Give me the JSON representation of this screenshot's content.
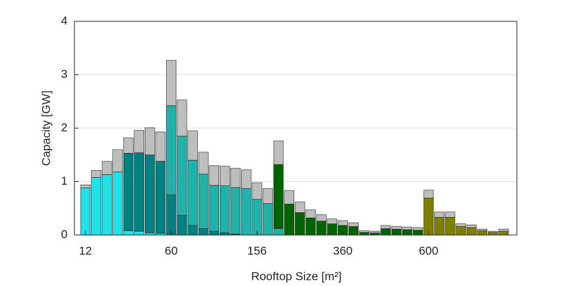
{
  "chart_data": {
    "type": "stacked_bar",
    "xlabel": "Rooftop Size [m²]",
    "ylabel": "Capacity [GW]",
    "categories": [
      "12",
      null,
      null,
      null,
      null,
      null,
      null,
      null,
      "60",
      null,
      null,
      null,
      null,
      null,
      null,
      null,
      "156",
      null,
      null,
      null,
      null,
      null,
      null,
      null,
      "360",
      null,
      null,
      null,
      null,
      null,
      null,
      null,
      "600",
      null,
      null,
      null,
      null,
      null,
      null,
      null
    ],
    "series": [
      {
        "color": "#1ee3e8",
        "values": [
          0.88,
          1.08,
          1.13,
          1.18,
          0.08,
          0.07,
          0.04,
          0.03,
          0.02,
          0,
          0,
          0,
          0,
          0,
          0,
          0,
          0,
          0,
          0,
          0,
          0,
          0,
          0,
          0,
          0,
          0,
          0,
          0,
          0,
          0,
          0,
          0,
          0,
          0,
          0,
          0,
          0,
          0,
          0,
          0
        ]
      },
      {
        "color": "#008080",
        "values": [
          0,
          0,
          0,
          0,
          1.45,
          1.47,
          1.46,
          1.35,
          0.73,
          0.37,
          0.18,
          0.12,
          0.07,
          0.04,
          0.02,
          0,
          0,
          0,
          0,
          0,
          0,
          0,
          0,
          0,
          0,
          0,
          0,
          0,
          0,
          0,
          0,
          0,
          0,
          0,
          0,
          0,
          0,
          0,
          0,
          0
        ]
      },
      {
        "color": "#20b2aa",
        "values": [
          0,
          0,
          0,
          0,
          0,
          0,
          0,
          0,
          1.67,
          1.48,
          1.22,
          1.02,
          0.86,
          0.88,
          0.87,
          0.87,
          0.67,
          0.59,
          0.12,
          0,
          0,
          0,
          0,
          0,
          0,
          0,
          0,
          0,
          0,
          0,
          0,
          0,
          0,
          0,
          0,
          0,
          0,
          0,
          0,
          0
        ]
      },
      {
        "color": "#006400",
        "values": [
          0,
          0,
          0,
          0,
          0,
          0,
          0,
          0,
          0,
          0,
          0,
          0,
          0,
          0,
          0,
          0,
          0,
          0,
          1.2,
          0.58,
          0.42,
          0.32,
          0.26,
          0.21,
          0.18,
          0.16,
          0.05,
          0.04,
          0.12,
          0.11,
          0.1,
          0.09,
          0,
          0,
          0,
          0,
          0,
          0,
          0,
          0
        ]
      },
      {
        "color": "#808000",
        "values": [
          0,
          0,
          0,
          0,
          0,
          0,
          0,
          0,
          0,
          0,
          0,
          0,
          0,
          0,
          0,
          0,
          0,
          0,
          0,
          0,
          0,
          0,
          0,
          0,
          0,
          0,
          0,
          0,
          0,
          0,
          0,
          0,
          0.69,
          0.33,
          0.33,
          0.16,
          0.14,
          0.08,
          0.05,
          0.07
        ]
      },
      {
        "color": "#bebebe",
        "values": [
          0.06,
          0.13,
          0.25,
          0.42,
          0.29,
          0.42,
          0.51,
          0.55,
          0.85,
          0.68,
          0.55,
          0.41,
          0.37,
          0.37,
          0.36,
          0.35,
          0.31,
          0.28,
          0.44,
          0.25,
          0.2,
          0.15,
          0.12,
          0.09,
          0.09,
          0.07,
          0.03,
          0.03,
          0.06,
          0.05,
          0.05,
          0.05,
          0.15,
          0.1,
          0.1,
          0.05,
          0.05,
          0.03,
          0.02,
          0.04
        ]
      }
    ],
    "ylim": [
      0,
      4
    ],
    "yticks": [
      0,
      1,
      2,
      3,
      4
    ],
    "grid": true
  }
}
